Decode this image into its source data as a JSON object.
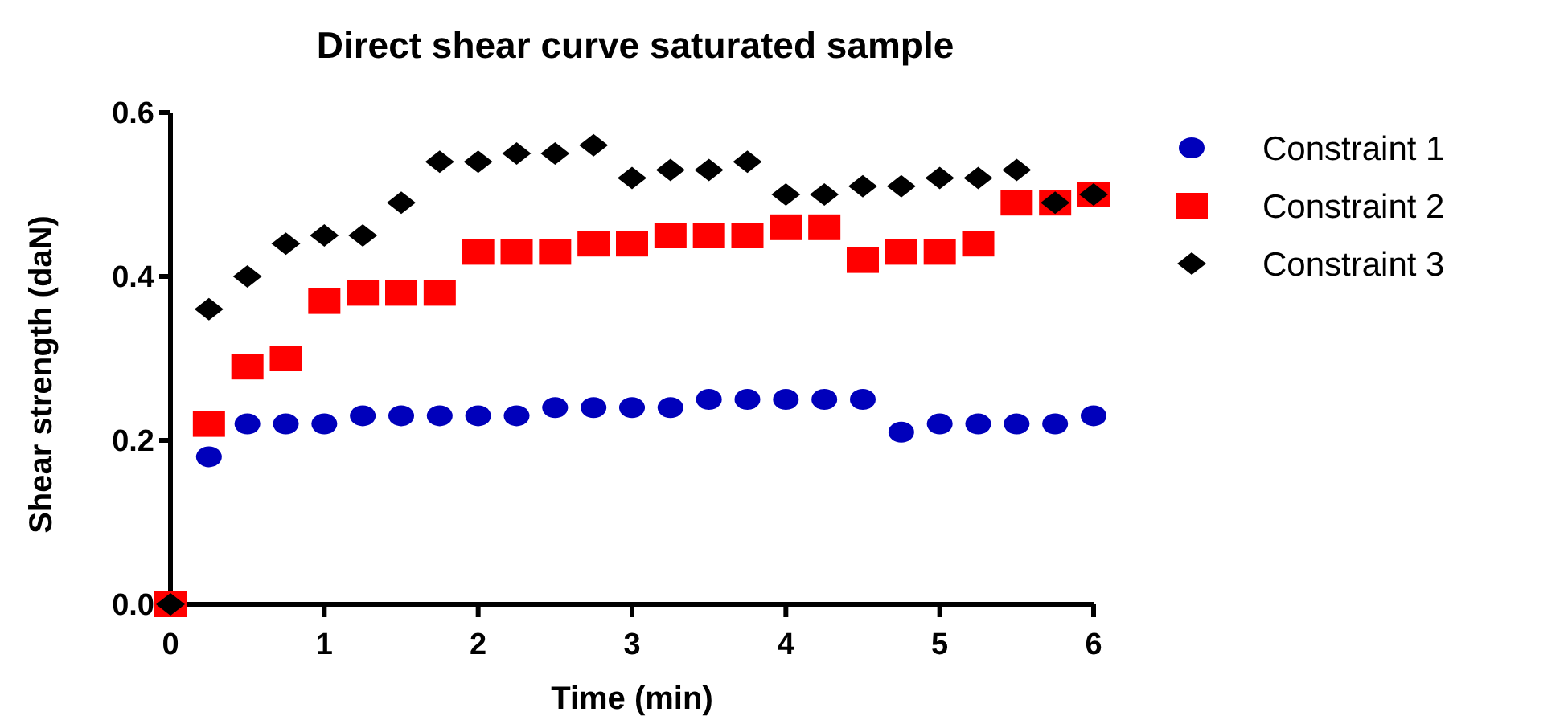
{
  "chart_data": {
    "type": "scatter",
    "title": "Direct shear curve saturated sample",
    "xlabel": "Time (min)",
    "ylabel": "Shear strength (daN)",
    "x": [
      0,
      0.25,
      0.5,
      0.75,
      1,
      1.25,
      1.5,
      1.75,
      2,
      2.25,
      2.5,
      2.75,
      3,
      3.25,
      3.5,
      3.75,
      4,
      4.25,
      4.5,
      4.75,
      5,
      5.25,
      5.5,
      5.75,
      6
    ],
    "series": [
      {
        "name": "Constraint 1",
        "color": "#0000bb",
        "marker": "circle",
        "values": [
          null,
          0.18,
          0.22,
          0.22,
          0.22,
          0.23,
          0.23,
          0.23,
          0.23,
          0.23,
          0.24,
          0.24,
          0.24,
          0.24,
          0.25,
          0.25,
          0.25,
          0.25,
          0.25,
          0.21,
          0.22,
          0.22,
          0.22,
          0.22,
          0.23
        ]
      },
      {
        "name": "Constraint 2",
        "color": "#ff0000",
        "marker": "square",
        "values": [
          0,
          0.22,
          0.29,
          0.3,
          0.37,
          0.38,
          0.38,
          0.38,
          0.43,
          0.43,
          0.43,
          0.44,
          0.44,
          0.45,
          0.45,
          0.45,
          0.46,
          0.46,
          0.42,
          0.43,
          0.43,
          0.44,
          0.49,
          0.49,
          0.5
        ]
      },
      {
        "name": "Constraint 3",
        "color": "#000000",
        "marker": "diamond",
        "values": [
          0,
          0.36,
          0.4,
          0.44,
          0.45,
          0.45,
          0.49,
          0.54,
          0.54,
          0.55,
          0.55,
          0.56,
          0.52,
          0.53,
          0.53,
          0.54,
          0.5,
          0.5,
          0.51,
          0.51,
          0.52,
          0.52,
          0.53,
          0.49,
          0.5
        ]
      }
    ],
    "xlim": [
      0,
      6
    ],
    "xticks": [
      0,
      1,
      2,
      3,
      4,
      5,
      6
    ],
    "ylim": [
      0,
      0.6
    ],
    "yticks": [
      {
        "value": 0,
        "label": "0.0"
      },
      {
        "value": 0.2,
        "label": "0.2"
      },
      {
        "value": 0.4,
        "label": "0.4"
      },
      {
        "value": 0.6,
        "label": "0.6"
      }
    ],
    "grid": false,
    "legend": "right"
  }
}
